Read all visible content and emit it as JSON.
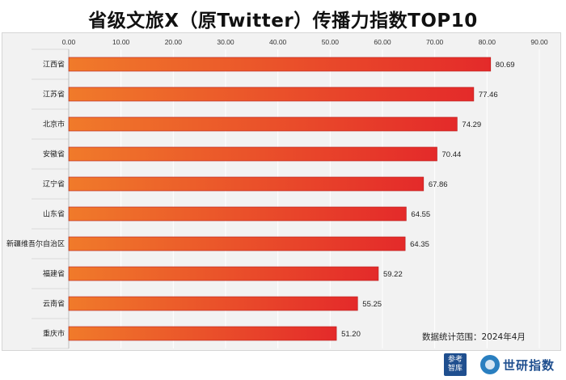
{
  "title": "省级文旅X（原Twitter）传播力指数TOP10",
  "note": "数据统计范围：2024年4月",
  "logos": {
    "badge_text": "参考\n智库",
    "brand_text": "世研指数"
  },
  "colors": {
    "bar_start": "#f07a2a",
    "bar_end": "#e42a2a",
    "panel": "#f2f2f2",
    "grid": "#ffffff"
  },
  "chart_data": {
    "type": "bar",
    "orientation": "horizontal",
    "categories": [
      "江西省",
      "江苏省",
      "北京市",
      "安徽省",
      "辽宁省",
      "山东省",
      "新疆维吾尔自治区",
      "福建省",
      "云南省",
      "重庆市"
    ],
    "values": [
      80.69,
      77.46,
      74.29,
      70.44,
      67.86,
      64.55,
      64.35,
      59.22,
      55.25,
      51.2
    ],
    "value_labels": [
      "80.69",
      "77.46",
      "74.29",
      "70.44",
      "67.86",
      "64.55",
      "64.35",
      "59.22",
      "55.25",
      "51.20"
    ],
    "xlim": [
      0,
      90
    ],
    "ticks": [
      "0.00",
      "10.00",
      "20.00",
      "30.00",
      "40.00",
      "50.00",
      "60.00",
      "70.00",
      "80.00",
      "90.00"
    ],
    "tick_values": [
      0,
      10,
      20,
      30,
      40,
      50,
      60,
      70,
      80,
      90
    ],
    "axis_position": "top",
    "grid": true,
    "legend": false
  }
}
